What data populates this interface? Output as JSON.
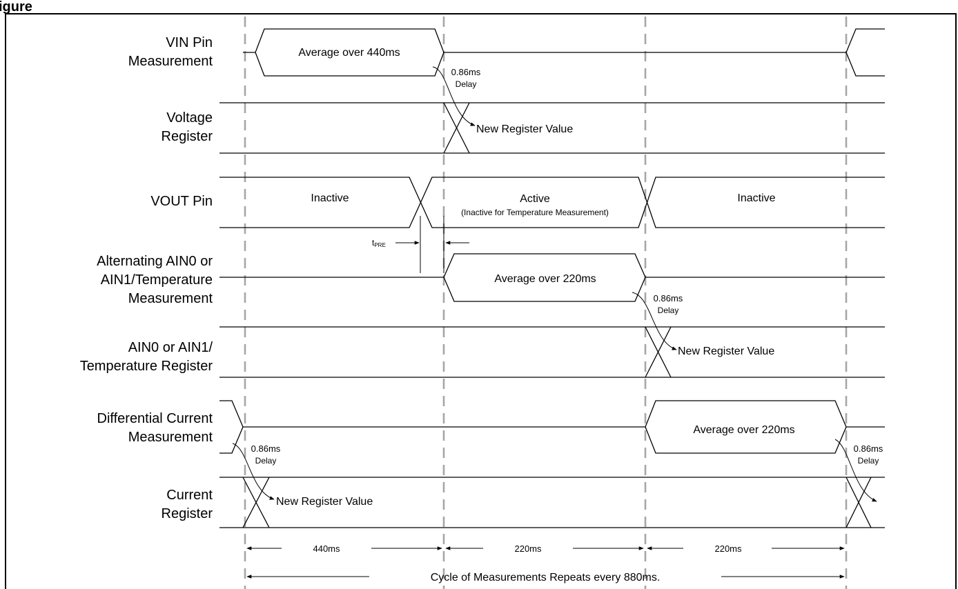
{
  "figure_title": "igure",
  "signals": [
    {
      "label_lines": [
        "VIN Pin",
        "Measurement"
      ]
    },
    {
      "label_lines": [
        "Voltage",
        "Register"
      ]
    },
    {
      "label_lines": [
        "VOUT Pin"
      ]
    },
    {
      "label_lines": [
        "Alternating AIN0 or",
        "AIN1/Temperature",
        "Measurement"
      ]
    },
    {
      "label_lines": [
        "AIN0 or AIN1/",
        "Temperature Register"
      ]
    },
    {
      "label_lines": [
        "Differential Current",
        "Measurement"
      ]
    },
    {
      "label_lines": [
        "Current",
        "Register"
      ]
    }
  ],
  "vin": {
    "average_text": "Average over 440ms",
    "delay_value": "0.86ms",
    "delay_word": "Delay"
  },
  "voltage_register": {
    "new_value_text": "New Register Value"
  },
  "vout": {
    "inactive_1": "Inactive",
    "active": "Active",
    "active_note": "(Inactive for Temperature Measurement)",
    "inactive_2": "Inactive"
  },
  "tpre": {
    "t": "t",
    "sub": "PRE"
  },
  "ain": {
    "average_text": "Average over 220ms",
    "delay_value": "0.86ms",
    "delay_word": "Delay"
  },
  "ain_register": {
    "new_value_text": "New Register Value"
  },
  "current_meas": {
    "average_text": "Average over 220ms",
    "delay1_value": "0.86ms",
    "delay1_word": "Delay",
    "delay2_value": "0.86ms",
    "delay2_word": "Delay"
  },
  "current_register": {
    "new_value_text": "New Register Value"
  },
  "durations": {
    "d1": "440ms",
    "d2": "220ms",
    "d3": "220ms"
  },
  "cycle_text": "Cycle of Measurements Repeats every 880ms."
}
